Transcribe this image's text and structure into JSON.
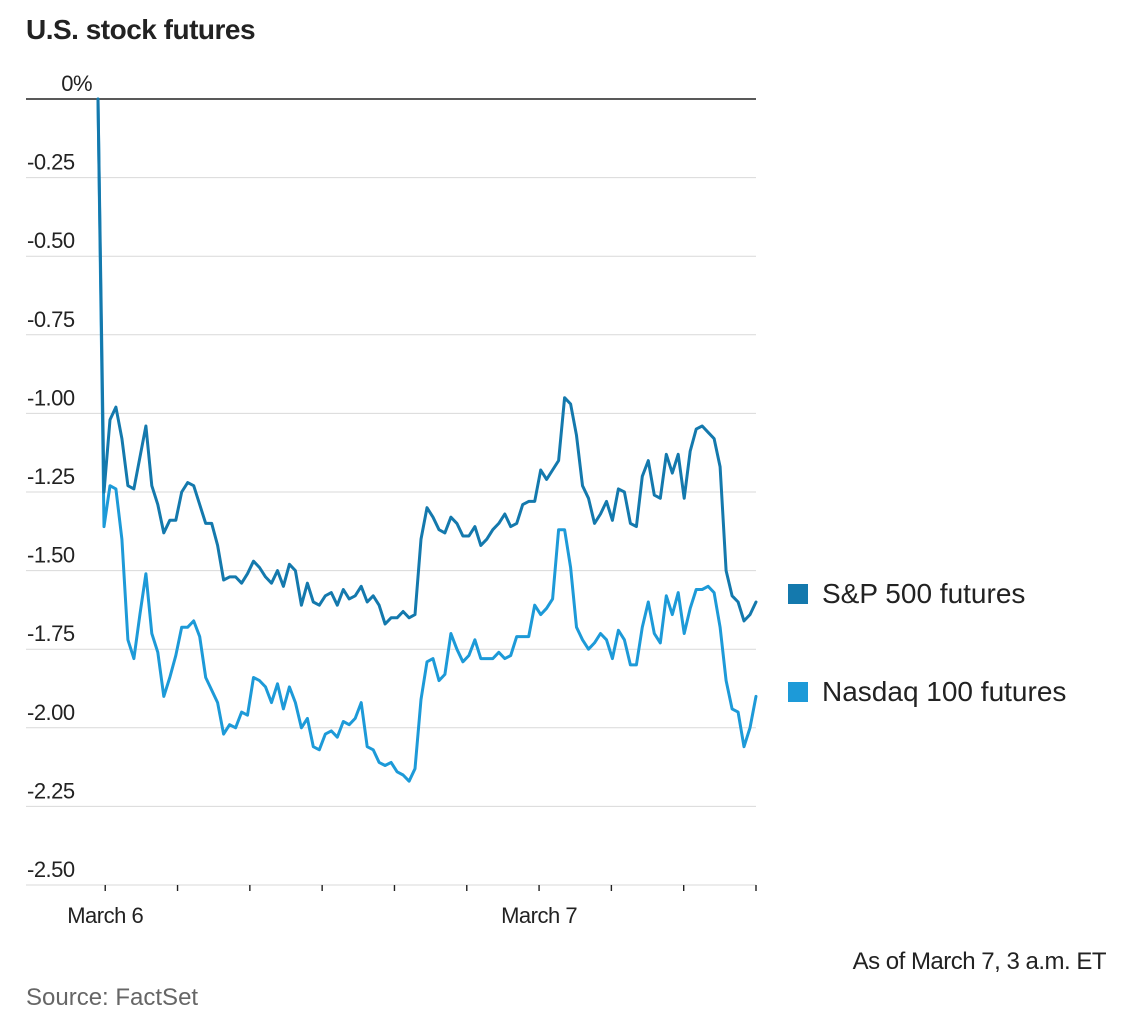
{
  "title": "U.S. stock futures",
  "footnote": "As of March 7, 3 a.m. ET",
  "source": "Source: FactSet",
  "colors": {
    "sp500": "#1479ad",
    "nasdaq": "#1d9ad8",
    "grid": "#d9d9d9",
    "zero": "#222222"
  },
  "chart_data": {
    "type": "line",
    "title": "U.S. stock futures",
    "xlabel": "",
    "ylabel": "",
    "ylim": [
      -2.5,
      0
    ],
    "yticks": [
      0,
      -0.25,
      -0.5,
      -0.75,
      -1.0,
      -1.25,
      -1.5,
      -1.75,
      -2.0,
      -2.25,
      -2.5
    ],
    "ytick_labels": [
      "0%",
      "-0.25",
      "-0.50",
      "-0.75",
      "-1.00",
      "-1.25",
      "-1.50",
      "-1.75",
      "-2.00",
      "-2.25",
      "-2.50"
    ],
    "x_label_positions": [
      1,
      61
    ],
    "x_labels": [
      "March 6",
      "March 7"
    ],
    "x_minor_tick_positions": [
      1,
      11,
      21,
      31,
      41,
      51,
      61,
      71,
      81,
      91
    ],
    "xlim": [
      0,
      91
    ],
    "legend": "right",
    "grid": true,
    "series": [
      {
        "name": "S&P 500 futures",
        "values": [
          0,
          -1.25,
          -1.02,
          -0.98,
          -1.08,
          -1.23,
          -1.24,
          -1.14,
          -1.04,
          -1.23,
          -1.29,
          -1.38,
          -1.34,
          -1.34,
          -1.25,
          -1.22,
          -1.23,
          -1.29,
          -1.35,
          -1.35,
          -1.42,
          -1.53,
          -1.52,
          -1.52,
          -1.54,
          -1.51,
          -1.47,
          -1.49,
          -1.52,
          -1.54,
          -1.5,
          -1.55,
          -1.48,
          -1.5,
          -1.61,
          -1.54,
          -1.6,
          -1.61,
          -1.58,
          -1.57,
          -1.61,
          -1.56,
          -1.59,
          -1.58,
          -1.55,
          -1.6,
          -1.58,
          -1.61,
          -1.67,
          -1.65,
          -1.65,
          -1.63,
          -1.65,
          -1.64,
          -1.4,
          -1.3,
          -1.33,
          -1.37,
          -1.38,
          -1.33,
          -1.35,
          -1.39,
          -1.39,
          -1.36,
          -1.42,
          -1.4,
          -1.37,
          -1.35,
          -1.32,
          -1.36,
          -1.35,
          -1.29,
          -1.28,
          -1.28,
          -1.18,
          -1.21,
          -1.18,
          -1.15,
          -0.95,
          -0.97,
          -1.07,
          -1.23,
          -1.27,
          -1.35,
          -1.32,
          -1.28,
          -1.34,
          -1.24,
          -1.25,
          -1.35,
          -1.36,
          -1.2,
          -1.15,
          -1.26,
          -1.27,
          -1.13,
          -1.19,
          -1.13,
          -1.27,
          -1.12,
          -1.05,
          -1.04,
          -1.06,
          -1.08,
          -1.17,
          -1.5,
          -1.58,
          -1.6,
          -1.66,
          -1.64,
          -1.6
        ]
      },
      {
        "name": "Nasdaq 100 futures",
        "values": [
          0,
          -1.36,
          -1.23,
          -1.24,
          -1.4,
          -1.72,
          -1.78,
          -1.64,
          -1.51,
          -1.7,
          -1.76,
          -1.9,
          -1.84,
          -1.77,
          -1.68,
          -1.68,
          -1.66,
          -1.71,
          -1.84,
          -1.88,
          -1.92,
          -2.02,
          -1.99,
          -2.0,
          -1.95,
          -1.96,
          -1.84,
          -1.85,
          -1.87,
          -1.92,
          -1.86,
          -1.94,
          -1.87,
          -1.92,
          -2.0,
          -1.97,
          -2.06,
          -2.07,
          -2.02,
          -2.01,
          -2.03,
          -1.98,
          -1.99,
          -1.97,
          -1.92,
          -2.06,
          -2.07,
          -2.11,
          -2.12,
          -2.11,
          -2.14,
          -2.15,
          -2.17,
          -2.13,
          -1.91,
          -1.79,
          -1.78,
          -1.85,
          -1.83,
          -1.7,
          -1.75,
          -1.79,
          -1.77,
          -1.72,
          -1.78,
          -1.78,
          -1.78,
          -1.76,
          -1.78,
          -1.77,
          -1.71,
          -1.71,
          -1.71,
          -1.61,
          -1.64,
          -1.62,
          -1.59,
          -1.37,
          -1.37,
          -1.49,
          -1.68,
          -1.72,
          -1.75,
          -1.73,
          -1.7,
          -1.72,
          -1.78,
          -1.69,
          -1.72,
          -1.8,
          -1.8,
          -1.68,
          -1.6,
          -1.7,
          -1.73,
          -1.58,
          -1.64,
          -1.57,
          -1.7,
          -1.62,
          -1.56,
          -1.56,
          -1.55,
          -1.57,
          -1.68,
          -1.85,
          -1.94,
          -1.95,
          -2.06,
          -2.0,
          -1.9
        ]
      }
    ]
  }
}
